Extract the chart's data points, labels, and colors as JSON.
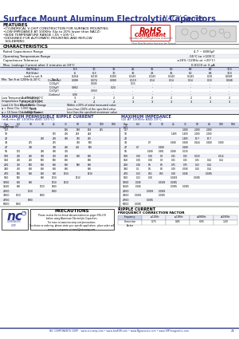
{
  "title_main": "Surface Mount Aluminum Electrolytic Capacitors",
  "title_series": "NACY Series",
  "bg_color": "#ffffff",
  "header_color": "#2d3a8c",
  "rohs_color": "#cc0000",
  "features": [
    "FEATURES",
    "•CYLINDRICAL V-CHIP CONSTRUCTION FOR SURFACE MOUNTING",
    "•LOW IMPEDANCE AT 100KHz (Up to 20% lower than NACZ)",
    "•WIDE TEMPERATURE RANGE (-55 +105°C)",
    "•DESIGNED FOR AUTOMATIC MOUNTING AND REFLOW",
    "  SOLDERING"
  ],
  "char_rows": [
    [
      "Rated Capacitance Range",
      "4.7 ~ 6800μF"
    ],
    [
      "Operating Temperature Range",
      "-55°C to +105°C"
    ],
    [
      "Capacitance Tolerance",
      "±20% (120Hz at +20°C)"
    ],
    [
      "Max. Leakage Current after 2 minutes at 20°C",
      "0.01CV or 3 μA"
    ]
  ],
  "wv": [
    "6.3",
    "10",
    "16",
    "25",
    "35",
    "50",
    "63",
    "80",
    "100"
  ],
  "rv": [
    "6",
    "6.3",
    "10",
    "16",
    "22",
    "35",
    "50",
    "63",
    "100"
  ],
  "tan_max": [
    "0.264",
    "0.210",
    "0.165",
    "0.143",
    "0.143",
    "0.143",
    "0.143",
    "0.10",
    "0.048"
  ],
  "tan_sub_labels": [
    "tanδ to set δ",
    "C₀(nominal)μF",
    "C₀(20μF)",
    "C₀(33μF)",
    "C₀(47μF)",
    "C₀(others)"
  ],
  "tan_sub_vals": [
    [
      "0.264",
      "0.210",
      "0.165",
      "0.143",
      "0.143",
      "0.143",
      "0.143",
      "0.10",
      "0.048"
    ],
    [
      "0.088",
      "0.074",
      "0.080",
      "0.119",
      "0.14",
      "0.14",
      "0.14",
      "0.10",
      "0.048"
    ],
    [
      "-",
      "0.045",
      "-",
      "0.15",
      "-",
      "-",
      "-",
      "-",
      "-"
    ],
    [
      "0.862",
      "-",
      "0.24",
      "-",
      "-",
      "-",
      "-",
      "-",
      "-"
    ],
    [
      "-",
      "0.060",
      "-",
      "-",
      "-",
      "-",
      "-",
      "-",
      "-"
    ],
    [
      "0.90",
      "-",
      "-",
      "-",
      "-",
      "-",
      "-",
      "-",
      "-"
    ]
  ],
  "lts_labels": [
    "Z -40°C/Z +20°C",
    "Z -55°C/Z +20°C"
  ],
  "lts_vals": [
    [
      "3",
      "2",
      "2",
      "2",
      "2",
      "2",
      "2",
      "2",
      "2"
    ],
    [
      "8",
      "4",
      "4",
      "3",
      "3",
      "3",
      "3",
      "3",
      "3"
    ]
  ],
  "ll_labels": [
    "Capacitance Change",
    "Tan δ",
    "Leakage Current"
  ],
  "ll_vals": [
    "Within ±30% of initial measured value",
    "Less than 200% of the specified value",
    "less than the specified maximum value"
  ],
  "rip_wv": [
    "6.3",
    "10",
    "16",
    "25",
    "35",
    "50",
    "63",
    "100",
    "500"
  ],
  "rip_caps": [
    "4.7",
    "10",
    "22",
    "33",
    "47",
    "56",
    "100",
    "150",
    "220",
    "330",
    "470",
    "560",
    "1000",
    "1500",
    "2200",
    "3300",
    "4700",
    "6800"
  ],
  "rip_data": [
    [
      "-",
      "-",
      "-",
      "-",
      "165",
      "180",
      "194",
      "215",
      "-"
    ],
    [
      "-",
      "-",
      "-",
      "195",
      "200",
      "218",
      "248",
      "-",
      "-"
    ],
    [
      "-",
      "-",
      "280",
      "280",
      "300",
      "365",
      "405",
      "-",
      "-"
    ],
    [
      "-",
      "275",
      "-",
      "295",
      "-",
      "380",
      "500",
      "-",
      "-"
    ],
    [
      "-",
      "390",
      "-",
      "390",
      "400",
      "430",
      "500",
      "-",
      "-"
    ],
    [
      "170",
      "-",
      "290",
      "300",
      "330",
      "-",
      "-",
      "-",
      "-"
    ],
    [
      "200",
      "250",
      "380",
      "450",
      "480",
      "600",
      "800",
      "-",
      "-"
    ],
    [
      "250",
      "250",
      "500",
      "500",
      "600",
      "-",
      "800",
      "-",
      "-"
    ],
    [
      "350",
      "500",
      "600",
      "600",
      "600",
      "580",
      "800",
      "-",
      "-"
    ],
    [
      "450",
      "600",
      "600",
      "600",
      "800",
      "-",
      "800",
      "-",
      "-"
    ],
    [
      "500",
      "600",
      "600",
      "600",
      "1150",
      "-",
      "1510",
      "-",
      "-"
    ],
    [
      "500",
      "-",
      "800",
      "1150",
      "-",
      "1510",
      "-",
      "-",
      "-"
    ],
    [
      "600",
      "800",
      "-",
      "1150",
      "1510",
      "-",
      "-",
      "-",
      "-"
    ],
    [
      "800",
      "-",
      "1150",
      "1800",
      "-",
      "-",
      "-",
      "-",
      "-"
    ],
    [
      "-",
      "1150",
      "-",
      "1800",
      "-",
      "-",
      "-",
      "-",
      "-"
    ],
    [
      "1150",
      "-",
      "1800",
      "-",
      "-",
      "-",
      "-",
      "-",
      "-"
    ],
    [
      "-",
      "1800",
      "-",
      "-",
      "-",
      "-",
      "-",
      "-",
      "-"
    ],
    [
      "1800",
      "-",
      "-",
      "-",
      "-",
      "-",
      "-",
      "-",
      "-"
    ]
  ],
  "imp_wv": [
    "6.3",
    "10",
    "16",
    "25",
    "35",
    "50",
    "63",
    "100",
    "500"
  ],
  "imp_caps": [
    "4.7",
    "10",
    "22",
    "33",
    "47",
    "56",
    "100",
    "150",
    "220",
    "330",
    "470",
    "560",
    "1000",
    "1500",
    "2200",
    "3300",
    "4700",
    "6800"
  ],
  "imp_data": [
    [
      "-",
      "-",
      "-",
      "-",
      "2.000",
      "2.000",
      "2.000",
      "-",
      "-"
    ],
    [
      "-",
      "-",
      "-",
      "1.485",
      "1.600",
      "2.000",
      "2.000",
      "-",
      "-"
    ],
    [
      "-",
      "-",
      "-",
      "-",
      "1.485",
      "10.7",
      "10.7",
      "-",
      "-"
    ],
    [
      "-",
      "0.7",
      "-",
      "0.288",
      "0.288",
      "0.444",
      "0.288",
      "0.080",
      "-"
    ],
    [
      "0.7",
      "-",
      "0.288",
      "-",
      "0.288",
      "-",
      "-",
      "-",
      "-"
    ],
    [
      "-",
      "0.288",
      "0.381",
      "0.288",
      "0.030",
      "-",
      "-",
      "-",
      "-"
    ],
    [
      "0.08",
      "0.08",
      "0.3",
      "0.15",
      "0.15",
      "0.020",
      "-",
      "0.014",
      "-"
    ],
    [
      "0.08",
      "0.08",
      "0.3",
      "0.15",
      "0.15",
      "0.15",
      "0.24",
      "0.14",
      "-"
    ],
    [
      "0.08",
      "0.5",
      "0.5",
      "0.75",
      "0.75",
      "0.13",
      "0.14",
      "-",
      "-"
    ],
    [
      "0.1",
      "0.5",
      "0.5",
      "0.08",
      "0.008",
      "0.10",
      "0.14",
      "-",
      "-"
    ],
    [
      "0.13",
      "0.55",
      "0.55",
      "0.08",
      "0.008",
      "-",
      "0.0085",
      "-",
      "-"
    ],
    [
      "0.13",
      "0.08",
      "-",
      "0.0088",
      "-",
      "0.0085",
      "-",
      "-",
      "-"
    ],
    [
      "0.008",
      "-",
      "0.0588",
      "0.0085",
      "-",
      "-",
      "-",
      "-",
      "-"
    ],
    [
      "0.008",
      "-",
      "-",
      "0.0085",
      "0.0085",
      "-",
      "-",
      "-",
      "-"
    ],
    [
      "-",
      "0.0088",
      "0.0088",
      "-",
      "-",
      "-",
      "-",
      "-",
      "-"
    ],
    [
      "0.0088",
      "-",
      "0.0085",
      "-",
      "-",
      "-",
      "-",
      "-",
      "-"
    ],
    [
      "-",
      "0.0085",
      "-",
      "-",
      "-",
      "-",
      "-",
      "-",
      "-"
    ],
    [
      "0.0085",
      "-",
      "-",
      "-",
      "-",
      "-",
      "-",
      "-",
      "-"
    ]
  ],
  "freq_labels": [
    "Frequency",
    "  ≤120Hz",
    "  ≤10KHz",
    "≤100KHz",
    "≤500KHz"
  ],
  "freq_vals": [
    "Correction\nFactor",
    "0.75",
    "0.85",
    "0.95",
    "1.00"
  ],
  "footer_text": "NIC COMPONENTS CORP.   www.niccomp.com • www.lowESR.com • www.NJpassives.com • www.SMTmagnetics.com",
  "page_num": "21"
}
